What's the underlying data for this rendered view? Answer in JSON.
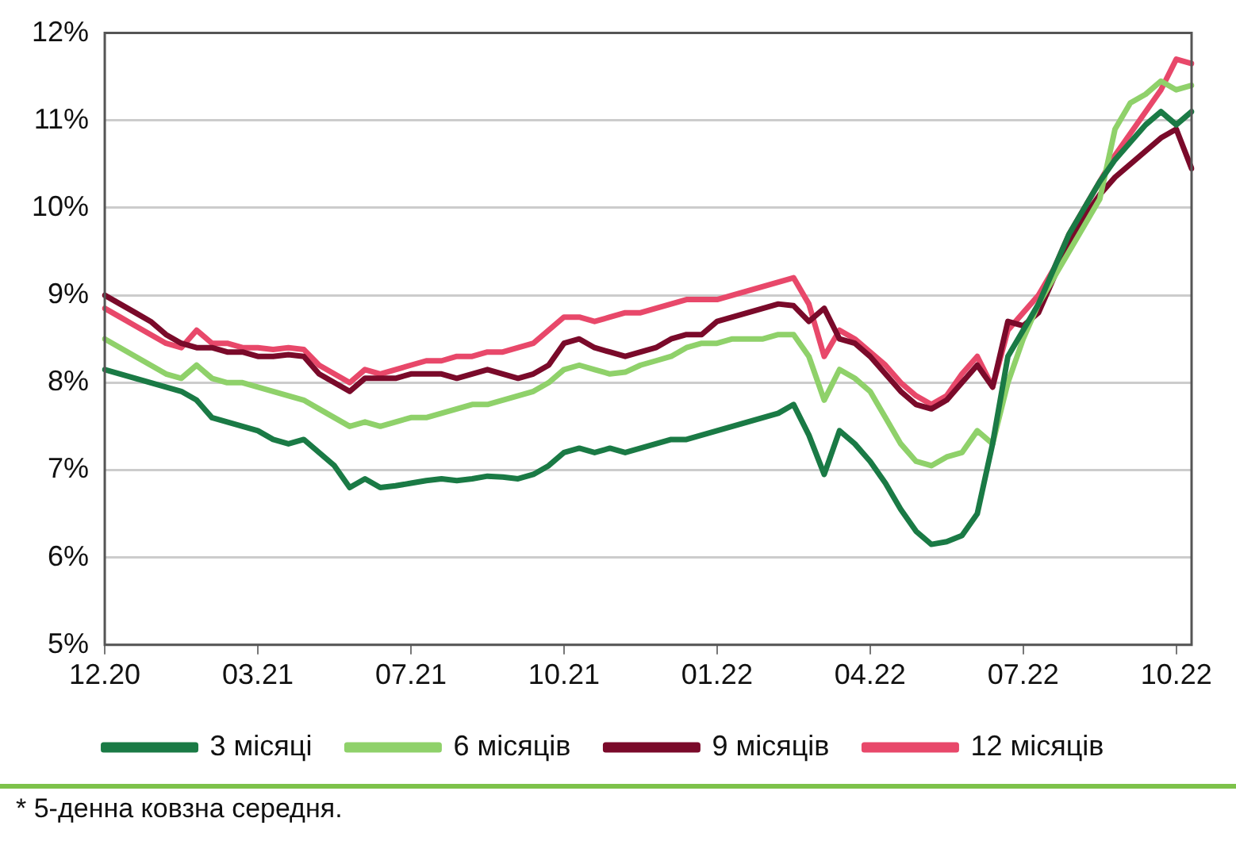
{
  "chart_data": {
    "type": "line",
    "categories": [
      "12.20",
      null,
      null,
      null,
      null,
      null,
      null,
      null,
      null,
      null,
      "03.21",
      null,
      null,
      null,
      null,
      null,
      null,
      null,
      null,
      null,
      "07.21",
      null,
      null,
      null,
      null,
      null,
      null,
      null,
      null,
      null,
      "10.21",
      null,
      null,
      null,
      null,
      null,
      null,
      null,
      null,
      null,
      "01.22",
      null,
      null,
      null,
      null,
      null,
      null,
      null,
      null,
      null,
      "04.22",
      null,
      null,
      null,
      null,
      null,
      null,
      null,
      null,
      null,
      "07.22",
      null,
      null,
      null,
      null,
      null,
      null,
      null,
      null,
      null,
      "10.22",
      null
    ],
    "series": [
      {
        "name": "3 місяці",
        "color": "#1a7a45",
        "values": [
          8.15,
          8.1,
          8.05,
          8.0,
          7.95,
          7.9,
          7.8,
          7.6,
          7.55,
          7.5,
          7.45,
          7.35,
          7.3,
          7.35,
          7.2,
          7.05,
          6.8,
          6.9,
          6.8,
          6.82,
          6.85,
          6.88,
          6.9,
          6.88,
          6.9,
          6.93,
          6.92,
          6.9,
          6.95,
          7.05,
          7.2,
          7.25,
          7.2,
          7.25,
          7.2,
          7.25,
          7.3,
          7.35,
          7.35,
          7.4,
          7.45,
          7.5,
          7.55,
          7.6,
          7.65,
          7.75,
          7.4,
          6.95,
          7.45,
          7.3,
          7.1,
          6.85,
          6.55,
          6.3,
          6.15,
          6.18,
          6.25,
          6.5,
          7.3,
          8.3,
          8.6,
          8.9,
          9.3,
          9.7,
          10.0,
          10.3,
          10.55,
          10.75,
          10.95,
          11.1,
          10.95,
          11.1
        ]
      },
      {
        "name": "6 місяців",
        "color": "#8fd16a",
        "values": [
          8.5,
          8.4,
          8.3,
          8.2,
          8.1,
          8.05,
          8.2,
          8.05,
          8.0,
          8.0,
          7.95,
          7.9,
          7.85,
          7.8,
          7.7,
          7.6,
          7.5,
          7.55,
          7.5,
          7.55,
          7.6,
          7.6,
          7.65,
          7.7,
          7.75,
          7.75,
          7.8,
          7.85,
          7.9,
          8.0,
          8.15,
          8.2,
          8.15,
          8.1,
          8.12,
          8.2,
          8.25,
          8.3,
          8.4,
          8.45,
          8.45,
          8.5,
          8.5,
          8.5,
          8.55,
          8.55,
          8.3,
          7.8,
          8.15,
          8.05,
          7.9,
          7.6,
          7.3,
          7.1,
          7.05,
          7.15,
          7.2,
          7.45,
          7.3,
          8.0,
          8.5,
          8.9,
          9.2,
          9.5,
          9.8,
          10.1,
          10.9,
          11.2,
          11.3,
          11.45,
          11.35,
          11.4
        ]
      },
      {
        "name": "9 місяців",
        "color": "#7a0a2a",
        "values": [
          9.0,
          8.9,
          8.8,
          8.7,
          8.55,
          8.45,
          8.4,
          8.4,
          8.35,
          8.35,
          8.3,
          8.3,
          8.32,
          8.3,
          8.1,
          8.0,
          7.9,
          8.05,
          8.05,
          8.05,
          8.1,
          8.1,
          8.1,
          8.05,
          8.1,
          8.15,
          8.1,
          8.05,
          8.1,
          8.2,
          8.45,
          8.5,
          8.4,
          8.35,
          8.3,
          8.35,
          8.4,
          8.5,
          8.55,
          8.55,
          8.7,
          8.75,
          8.8,
          8.85,
          8.9,
          8.88,
          8.7,
          8.85,
          8.5,
          8.45,
          8.3,
          8.1,
          7.9,
          7.75,
          7.7,
          7.8,
          8.0,
          8.2,
          7.95,
          8.7,
          8.65,
          8.8,
          9.2,
          9.6,
          9.9,
          10.15,
          10.35,
          10.5,
          10.65,
          10.8,
          10.9,
          10.45
        ]
      },
      {
        "name": "12 місяців",
        "color": "#e8486a",
        "values": [
          8.85,
          8.75,
          8.65,
          8.55,
          8.45,
          8.4,
          8.6,
          8.45,
          8.45,
          8.4,
          8.4,
          8.38,
          8.4,
          8.38,
          8.2,
          8.1,
          8.0,
          8.15,
          8.1,
          8.15,
          8.2,
          8.25,
          8.25,
          8.3,
          8.3,
          8.35,
          8.35,
          8.4,
          8.45,
          8.6,
          8.75,
          8.75,
          8.7,
          8.75,
          8.8,
          8.8,
          8.85,
          8.9,
          8.95,
          8.95,
          8.95,
          9.0,
          9.05,
          9.1,
          9.15,
          9.2,
          8.9,
          8.3,
          8.6,
          8.5,
          8.35,
          8.2,
          8.0,
          7.85,
          7.75,
          7.85,
          8.1,
          8.3,
          7.95,
          8.6,
          8.8,
          9.0,
          9.3,
          9.7,
          10.0,
          10.3,
          10.6,
          10.85,
          11.1,
          11.35,
          11.7,
          11.65
        ]
      }
    ],
    "ylim": [
      5,
      12
    ],
    "yticks": [
      {
        "value": 5,
        "label": "5%"
      },
      {
        "value": 6,
        "label": "6%"
      },
      {
        "value": 7,
        "label": "7%"
      },
      {
        "value": 8,
        "label": "8%"
      },
      {
        "value": 9,
        "label": "9%"
      },
      {
        "value": 10,
        "label": "10%"
      },
      {
        "value": 11,
        "label": "11%"
      },
      {
        "value": 12,
        "label": "12%"
      }
    ],
    "grid": "y",
    "legend": "bottom",
    "marker": "none",
    "line_style": "solid",
    "annotations": [
      "* 5-денна ковзна середня."
    ]
  }
}
